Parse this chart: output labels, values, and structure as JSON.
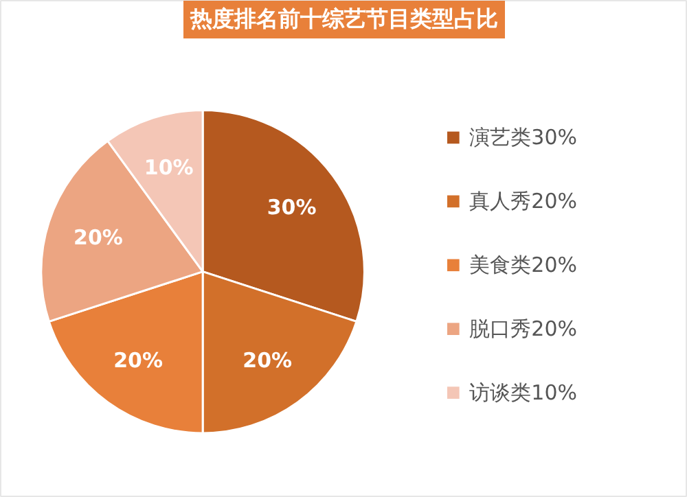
{
  "chart_data": {
    "type": "pie",
    "title": "热度排名前十综艺节目类型占比",
    "categories": [
      "演艺类30%",
      "真人秀20%",
      "美食类20%",
      "脱口秀20%",
      "访谈类10%"
    ],
    "values": [
      30,
      20,
      20,
      20,
      10
    ],
    "colors": [
      "#b5591f",
      "#d2702a",
      "#e8803a",
      "#eca582",
      "#f4c6b6"
    ],
    "value_labels": [
      "30%",
      "20%",
      "20%",
      "20%",
      "10%"
    ],
    "legend": "right"
  }
}
